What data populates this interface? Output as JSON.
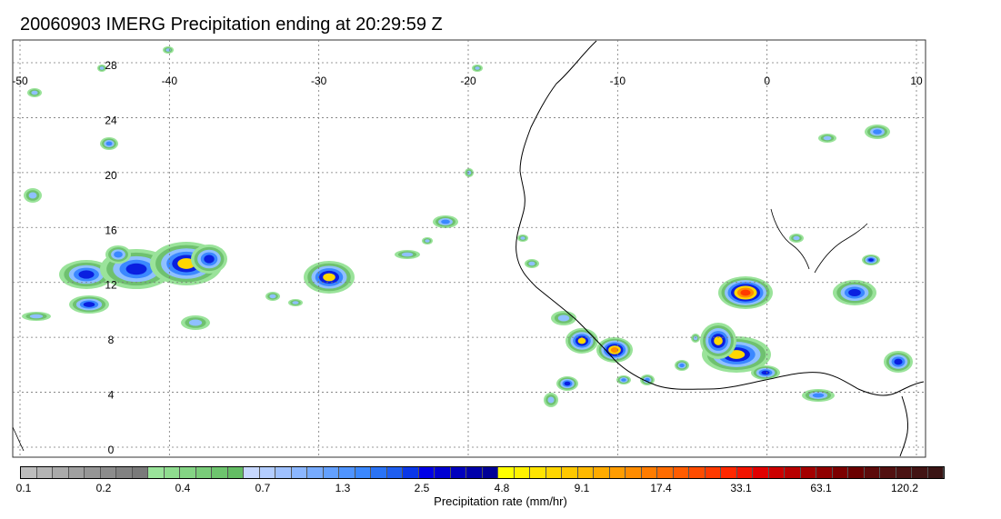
{
  "title": "20060903 IMERG Precipitation ending at 20:29:59 Z",
  "map": {
    "lon_range": [
      -50,
      10
    ],
    "lat_range": [
      -0.5,
      30
    ],
    "lon_ticks": [
      "-50",
      "-40",
      "-30",
      "-20",
      "-10",
      "0",
      "10"
    ],
    "lat_ticks": [
      "0",
      "4",
      "8",
      "12",
      "16",
      "20",
      "24",
      "28"
    ],
    "gridlines": "dotted",
    "coastline_color": "#000000"
  },
  "colorbar": {
    "title": "Precipitation rate (mm/hr)",
    "tick_labels": [
      "0.1",
      "0.2",
      "0.4",
      "0.7",
      "1.3",
      "2.5",
      "4.8",
      "9.1",
      "17.4",
      "33.1",
      "63.1",
      "120.2"
    ],
    "colors": [
      "#bdbdbd",
      "#b4b4b4",
      "#aaaaaa",
      "#a0a0a0",
      "#969696",
      "#8c8c8c",
      "#828282",
      "#7a7a7a",
      "#9ae39a",
      "#8fdc8f",
      "#84d484",
      "#79cc79",
      "#6ec46e",
      "#63bc63",
      "#c7d8ff",
      "#b3cdff",
      "#9fc1ff",
      "#8bb6ff",
      "#77abff",
      "#63a0ff",
      "#4f94ff",
      "#3b88ff",
      "#2a73f5",
      "#1e5ef0",
      "#0a37e8",
      "#0000e6",
      "#0000d2",
      "#0000be",
      "#0000aa",
      "#000096",
      "#ffff00",
      "#fff200",
      "#ffe400",
      "#ffd600",
      "#ffc800",
      "#ffb900",
      "#ffab00",
      "#ff9c00",
      "#ff8c00",
      "#ff7c00",
      "#ff6c00",
      "#ff5c00",
      "#ff4c00",
      "#ff3a00",
      "#ff2800",
      "#f21400",
      "#e00000",
      "#cc0000",
      "#b80000",
      "#a40000",
      "#900000",
      "#7c0000",
      "#6a0000",
      "#5c0a0a",
      "#521010",
      "#4a1212",
      "#421414",
      "#3a1414"
    ]
  }
}
